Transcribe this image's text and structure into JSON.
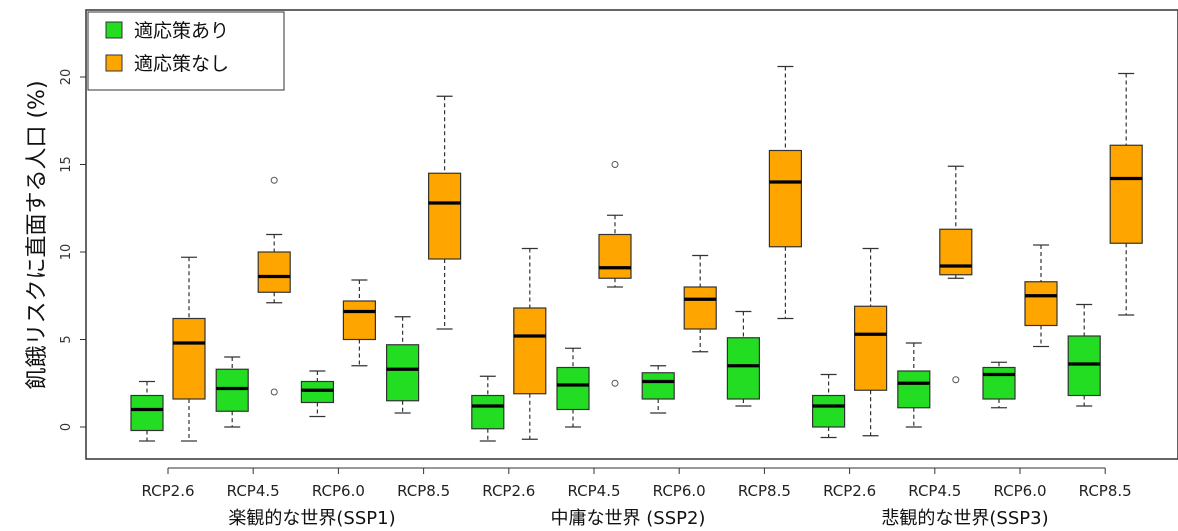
{
  "chart_data": {
    "type": "boxplot",
    "ylabel": "飢餓リスクに直面する人口 (%)",
    "y_ticks": [
      0,
      5,
      10,
      15,
      20
    ],
    "ylim": [
      -1.8,
      23.5
    ],
    "legend": {
      "placement": "top-left",
      "items": [
        {
          "label": "適応策あり",
          "color": "#22dd22"
        },
        {
          "label": "適応策なし",
          "color": "#ffa500"
        }
      ]
    },
    "scenarios": [
      "RCP2.6",
      "RCP4.5",
      "RCP6.0",
      "RCP8.5",
      "RCP2.6",
      "RCP4.5",
      "RCP6.0",
      "RCP8.5",
      "RCP2.6",
      "RCP4.5",
      "RCP6.0",
      "RCP8.5"
    ],
    "groups": [
      "楽観的な世界(SSP1)",
      "中庸な世界 (SSP2)",
      "悲観的な世界(SSP3)"
    ],
    "boxes": [
      {
        "series": "適応策あり",
        "scenario": 0,
        "min": -0.8,
        "q1": -0.2,
        "median": 1.0,
        "q3": 1.8,
        "max": 2.6,
        "outliers": []
      },
      {
        "series": "適応策なし",
        "scenario": 0,
        "min": -0.8,
        "q1": 1.6,
        "median": 4.8,
        "q3": 6.2,
        "max": 9.7,
        "outliers": []
      },
      {
        "series": "適応策あり",
        "scenario": 1,
        "min": 0.0,
        "q1": 0.9,
        "median": 2.2,
        "q3": 3.3,
        "max": 4.0,
        "outliers": []
      },
      {
        "series": "適応策なし",
        "scenario": 1,
        "min": 7.1,
        "q1": 7.7,
        "median": 8.6,
        "q3": 10.0,
        "max": 11.0,
        "outliers": [
          14.1,
          2.0
        ]
      },
      {
        "series": "適応策あり",
        "scenario": 2,
        "min": 0.6,
        "q1": 1.4,
        "median": 2.1,
        "q3": 2.6,
        "max": 3.2,
        "outliers": []
      },
      {
        "series": "適応策なし",
        "scenario": 2,
        "min": 3.5,
        "q1": 5.0,
        "median": 6.6,
        "q3": 7.2,
        "max": 8.4,
        "outliers": []
      },
      {
        "series": "適応策あり",
        "scenario": 3,
        "min": 0.8,
        "q1": 1.5,
        "median": 3.3,
        "q3": 4.7,
        "max": 6.3,
        "outliers": []
      },
      {
        "series": "適応策なし",
        "scenario": 3,
        "min": 5.6,
        "q1": 9.6,
        "median": 12.8,
        "q3": 14.5,
        "max": 18.9,
        "outliers": []
      },
      {
        "series": "適応策あり",
        "scenario": 4,
        "min": -0.8,
        "q1": -0.1,
        "median": 1.2,
        "q3": 1.8,
        "max": 2.9,
        "outliers": []
      },
      {
        "series": "適応策なし",
        "scenario": 4,
        "min": -0.7,
        "q1": 1.9,
        "median": 5.2,
        "q3": 6.8,
        "max": 10.2,
        "outliers": []
      },
      {
        "series": "適応策あり",
        "scenario": 5,
        "min": 0.0,
        "q1": 1.0,
        "median": 2.4,
        "q3": 3.4,
        "max": 4.5,
        "outliers": []
      },
      {
        "series": "適応策なし",
        "scenario": 5,
        "min": 8.0,
        "q1": 8.5,
        "median": 9.1,
        "q3": 11.0,
        "max": 12.1,
        "outliers": [
          15.0,
          2.5
        ]
      },
      {
        "series": "適応策あり",
        "scenario": 6,
        "min": 0.8,
        "q1": 1.6,
        "median": 2.6,
        "q3": 3.1,
        "max": 3.5,
        "outliers": []
      },
      {
        "series": "適応策なし",
        "scenario": 6,
        "min": 4.3,
        "q1": 5.6,
        "median": 7.3,
        "q3": 8.0,
        "max": 9.8,
        "outliers": []
      },
      {
        "series": "適応策あり",
        "scenario": 7,
        "min": 1.2,
        "q1": 1.6,
        "median": 3.5,
        "q3": 5.1,
        "max": 6.6,
        "outliers": []
      },
      {
        "series": "適応策なし",
        "scenario": 7,
        "min": 6.2,
        "q1": 10.3,
        "median": 14.0,
        "q3": 15.8,
        "max": 20.6,
        "outliers": []
      },
      {
        "series": "適応策あり",
        "scenario": 8,
        "min": -0.6,
        "q1": 0.0,
        "median": 1.2,
        "q3": 1.8,
        "max": 3.0,
        "outliers": []
      },
      {
        "series": "適応策なし",
        "scenario": 8,
        "min": -0.5,
        "q1": 2.1,
        "median": 5.3,
        "q3": 6.9,
        "max": 10.2,
        "outliers": []
      },
      {
        "series": "適応策あり",
        "scenario": 9,
        "min": 0.0,
        "q1": 1.1,
        "median": 2.5,
        "q3": 3.2,
        "max": 4.8,
        "outliers": []
      },
      {
        "series": "適応策なし",
        "scenario": 9,
        "min": 8.5,
        "q1": 8.7,
        "median": 9.2,
        "q3": 11.3,
        "max": 14.9,
        "outliers": [
          2.7
        ]
      },
      {
        "series": "適応策あり",
        "scenario": 10,
        "min": 1.1,
        "q1": 1.6,
        "median": 3.0,
        "q3": 3.4,
        "max": 3.7,
        "outliers": []
      },
      {
        "series": "適応策なし",
        "scenario": 10,
        "min": 4.6,
        "q1": 5.8,
        "median": 7.5,
        "q3": 8.3,
        "max": 10.4,
        "outliers": []
      },
      {
        "series": "適応策あり",
        "scenario": 11,
        "min": 1.2,
        "q1": 1.8,
        "median": 3.6,
        "q3": 5.2,
        "max": 7.0,
        "outliers": []
      },
      {
        "series": "適応策なし",
        "scenario": 11,
        "min": 6.4,
        "q1": 10.5,
        "median": 14.2,
        "q3": 16.1,
        "max": 20.2,
        "outliers": []
      }
    ]
  }
}
